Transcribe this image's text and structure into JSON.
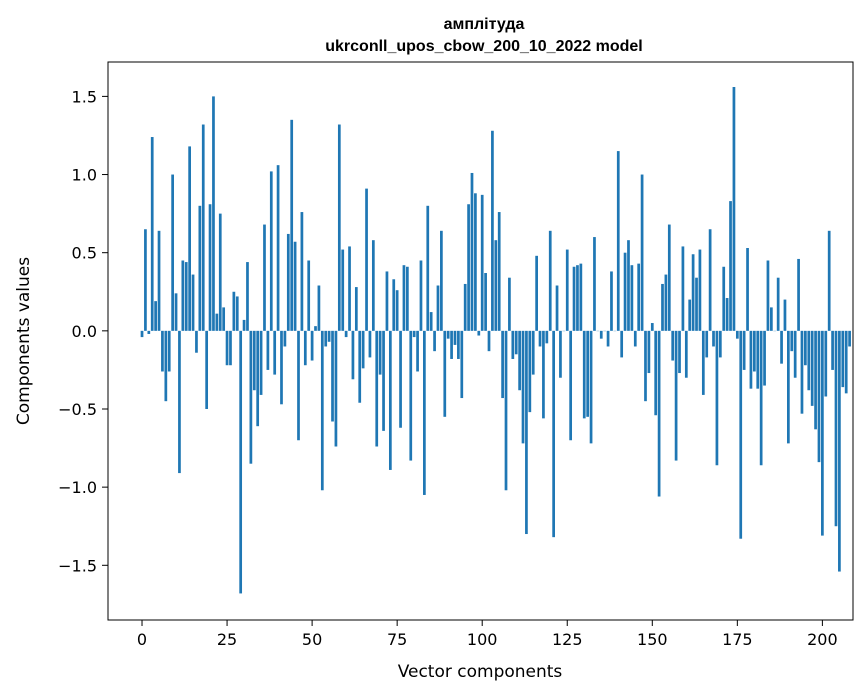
{
  "chart_data": {
    "type": "bar",
    "title": "амплітуда",
    "subtitle": "ukrconll_upos_cbow_200_10_2022 model",
    "xlabel": "Vector components",
    "ylabel": "Components values",
    "xlim": [
      -10,
      209
    ],
    "ylim": [
      -1.85,
      1.72
    ],
    "xticks": [
      0,
      25,
      50,
      75,
      100,
      125,
      150,
      175,
      200
    ],
    "xtick_labels": [
      "0",
      "25",
      "50",
      "75",
      "100",
      "125",
      "150",
      "175",
      "200"
    ],
    "yticks": [
      -1.5,
      -1.0,
      -0.5,
      0.0,
      0.5,
      1.0,
      1.5
    ],
    "ytick_labels": [
      "−1.5",
      "−1.0",
      "−0.5",
      "0.0",
      "0.5",
      "1.0",
      "1.5"
    ],
    "bar_color": "#1f77b4",
    "grid": false,
    "values": [
      -0.04,
      0.65,
      -0.02,
      1.24,
      0.19,
      0.64,
      -0.26,
      -0.45,
      -0.26,
      1.0,
      0.24,
      -0.91,
      0.45,
      0.44,
      1.18,
      0.36,
      -0.14,
      0.8,
      1.32,
      -0.5,
      0.81,
      1.5,
      0.11,
      0.75,
      0.15,
      -0.22,
      -0.22,
      0.25,
      0.22,
      -1.68,
      0.07,
      0.44,
      -0.85,
      -0.38,
      -0.61,
      -0.41,
      0.68,
      -0.25,
      1.02,
      -0.28,
      1.06,
      -0.47,
      -0.1,
      0.62,
      1.35,
      0.57,
      -0.7,
      0.76,
      -0.22,
      0.45,
      -0.19,
      0.03,
      0.29,
      -1.02,
      -0.1,
      -0.07,
      -0.58,
      -0.74,
      1.32,
      0.52,
      -0.04,
      0.54,
      -0.31,
      0.28,
      -0.46,
      -0.24,
      0.91,
      -0.17,
      0.58,
      -0.74,
      -0.28,
      -0.64,
      0.38,
      -0.89,
      0.33,
      0.26,
      -0.62,
      0.42,
      0.41,
      -0.83,
      -0.04,
      -0.26,
      0.45,
      -1.05,
      0.8,
      0.12,
      -0.13,
      0.29,
      0.64,
      -0.55,
      -0.05,
      -0.18,
      -0.09,
      -0.18,
      -0.43,
      0.3,
      0.81,
      1.01,
      0.88,
      -0.03,
      0.87,
      0.37,
      -0.13,
      1.28,
      0.58,
      0.76,
      -0.43,
      -1.02,
      0.34,
      -0.18,
      -0.15,
      -0.38,
      -0.72,
      -1.3,
      -0.52,
      -0.28,
      0.48,
      -0.1,
      -0.56,
      -0.08,
      0.64,
      -1.32,
      0.29,
      -0.3,
      0.0,
      0.52,
      -0.7,
      0.41,
      0.42,
      0.43,
      -0.56,
      -0.55,
      -0.72,
      0.6,
      0.0,
      -0.05,
      0.0,
      -0.1,
      0.38,
      0.0,
      1.15,
      -0.17,
      0.5,
      0.58,
      0.42,
      -0.1,
      0.43,
      1.0,
      -0.45,
      -0.27,
      0.05,
      -0.54,
      -1.06,
      0.3,
      0.36,
      0.68,
      -0.19,
      -0.83,
      -0.27,
      0.54,
      -0.3,
      0.2,
      0.49,
      0.34,
      0.52,
      -0.41,
      -0.17,
      0.65,
      -0.1,
      -0.86,
      -0.17,
      0.41,
      0.21,
      0.83,
      1.56,
      -0.05,
      -1.33,
      -0.25,
      0.53,
      -0.37,
      -0.26,
      -0.37,
      -0.86,
      -0.35,
      0.45,
      0.15,
      0.0,
      0.34,
      -0.21,
      0.2,
      -0.72,
      -0.13,
      -0.3,
      0.46,
      -0.53,
      -0.22,
      -0.38,
      -0.48,
      -0.63,
      -0.84,
      -1.31,
      -0.42,
      0.64,
      -0.25,
      -1.25,
      -1.54,
      -0.36,
      -0.4,
      -0.1
    ]
  }
}
